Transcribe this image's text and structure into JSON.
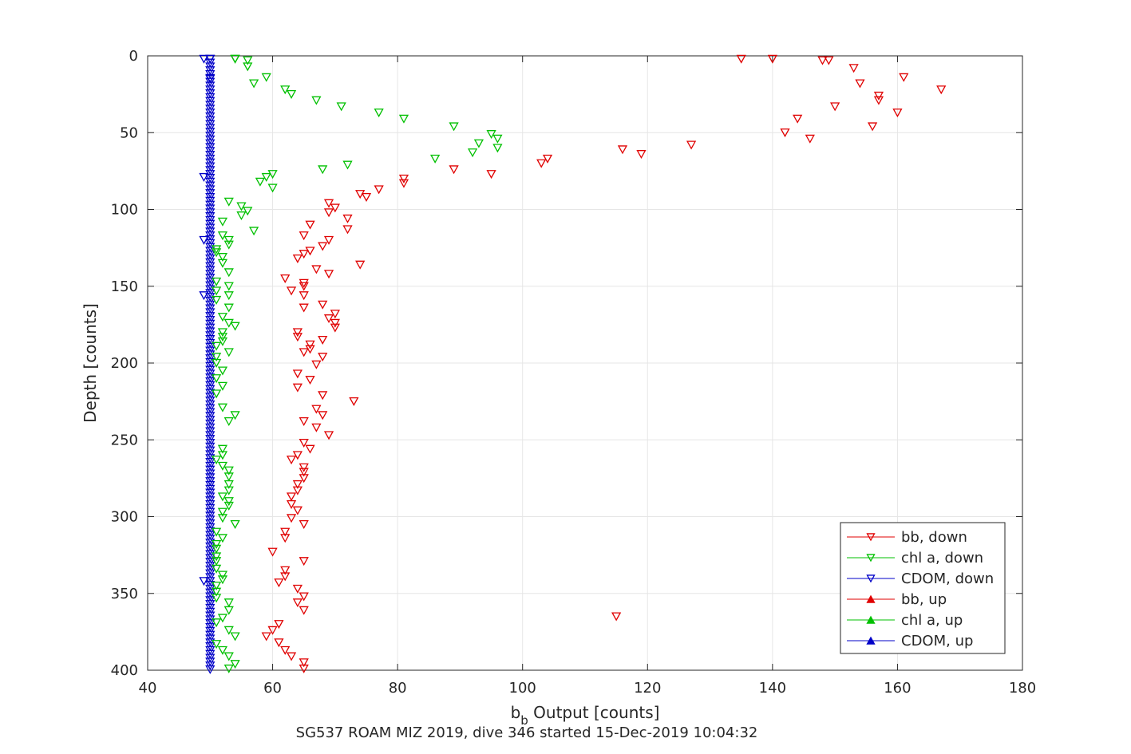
{
  "chart_data": {
    "type": "scatter",
    "xlabel": "b",
    "xlabel_sub": "b",
    "xlabel_rest": " Output [counts]",
    "ylabel": "Depth [counts]",
    "caption": "SG537 ROAM MIZ 2019, dive 346 started 15-Dec-2019 10:04:32",
    "xlim": [
      40,
      180
    ],
    "ylim": [
      0,
      400
    ],
    "y_reversed": true,
    "grid": true,
    "legend_position": "bottom-right",
    "x_ticks": [
      "40",
      "60",
      "80",
      "100",
      "120",
      "140",
      "160",
      "180"
    ],
    "y_ticks": [
      "0",
      "50",
      "100",
      "150",
      "200",
      "250",
      "300",
      "350",
      "400"
    ],
    "series": [
      {
        "name": "bb, down",
        "color": "#e00000",
        "marker": "triangle-down",
        "points": [
          [
            135,
            2
          ],
          [
            140,
            2
          ],
          [
            148,
            3
          ],
          [
            149,
            3
          ],
          [
            153,
            8
          ],
          [
            161,
            14
          ],
          [
            154,
            18
          ],
          [
            167,
            22
          ],
          [
            157,
            26
          ],
          [
            157,
            29
          ],
          [
            150,
            33
          ],
          [
            160,
            37
          ],
          [
            144,
            41
          ],
          [
            156,
            46
          ],
          [
            142,
            50
          ],
          [
            146,
            54
          ],
          [
            127,
            58
          ],
          [
            116,
            61
          ],
          [
            119,
            64
          ],
          [
            104,
            67
          ],
          [
            103,
            70
          ],
          [
            89,
            74
          ],
          [
            95,
            77
          ],
          [
            81,
            80
          ],
          [
            81,
            83
          ],
          [
            77,
            87
          ],
          [
            74,
            90
          ],
          [
            75,
            92
          ],
          [
            69,
            96
          ],
          [
            70,
            99
          ],
          [
            69,
            102
          ],
          [
            72,
            106
          ],
          [
            66,
            110
          ],
          [
            72,
            113
          ],
          [
            65,
            117
          ],
          [
            69,
            120
          ],
          [
            68,
            124
          ],
          [
            66,
            127
          ],
          [
            65,
            129
          ],
          [
            64,
            132
          ],
          [
            74,
            136
          ],
          [
            67,
            139
          ],
          [
            69,
            142
          ],
          [
            62,
            145
          ],
          [
            65,
            148
          ],
          [
            65,
            150
          ],
          [
            63,
            153
          ],
          [
            65,
            156
          ],
          [
            68,
            162
          ],
          [
            65,
            164
          ],
          [
            70,
            168
          ],
          [
            69,
            171
          ],
          [
            70,
            174
          ],
          [
            70,
            177
          ],
          [
            64,
            180
          ],
          [
            64,
            183
          ],
          [
            68,
            185
          ],
          [
            66,
            188
          ],
          [
            66,
            191
          ],
          [
            65,
            193
          ],
          [
            68,
            196
          ],
          [
            67,
            201
          ],
          [
            64,
            207
          ],
          [
            66,
            211
          ],
          [
            64,
            216
          ],
          [
            68,
            221
          ],
          [
            73,
            225
          ],
          [
            67,
            230
          ],
          [
            68,
            234
          ],
          [
            65,
            238
          ],
          [
            67,
            242
          ],
          [
            69,
            247
          ],
          [
            65,
            252
          ],
          [
            66,
            256
          ],
          [
            63,
            263
          ],
          [
            64,
            260
          ],
          [
            65,
            268
          ],
          [
            65,
            271
          ],
          [
            65,
            275
          ],
          [
            64,
            279
          ],
          [
            64,
            283
          ],
          [
            63,
            287
          ],
          [
            63,
            292
          ],
          [
            64,
            296
          ],
          [
            63,
            301
          ],
          [
            65,
            305
          ],
          [
            62,
            310
          ],
          [
            62,
            314
          ],
          [
            60,
            323
          ],
          [
            65,
            329
          ],
          [
            62,
            335
          ],
          [
            62,
            339
          ],
          [
            61,
            343
          ],
          [
            64,
            347
          ],
          [
            65,
            352
          ],
          [
            64,
            356
          ],
          [
            65,
            361
          ],
          [
            115,
            365
          ],
          [
            61,
            370
          ],
          [
            60,
            374
          ],
          [
            59,
            378
          ],
          [
            61,
            382
          ],
          [
            62,
            387
          ],
          [
            63,
            391
          ],
          [
            65,
            395
          ],
          [
            65,
            399
          ]
        ]
      },
      {
        "name": "chl a, down",
        "color": "#00c000",
        "marker": "triangle-down",
        "points": [
          [
            54,
            2
          ],
          [
            54,
            2
          ],
          [
            56,
            3
          ],
          [
            56,
            7
          ],
          [
            59,
            14
          ],
          [
            57,
            18
          ],
          [
            62,
            22
          ],
          [
            63,
            25
          ],
          [
            67,
            29
          ],
          [
            71,
            33
          ],
          [
            77,
            37
          ],
          [
            81,
            41
          ],
          [
            89,
            46
          ],
          [
            95,
            51
          ],
          [
            96,
            54
          ],
          [
            93,
            57
          ],
          [
            96,
            60
          ],
          [
            92,
            63
          ],
          [
            86,
            67
          ],
          [
            72,
            71
          ],
          [
            68,
            74
          ],
          [
            60,
            77
          ],
          [
            59,
            79
          ],
          [
            58,
            82
          ],
          [
            60,
            86
          ],
          [
            53,
            95
          ],
          [
            55,
            98
          ],
          [
            56,
            101
          ],
          [
            55,
            104
          ],
          [
            52,
            108
          ],
          [
            57,
            114
          ],
          [
            52,
            117
          ],
          [
            53,
            120
          ],
          [
            53,
            123
          ],
          [
            51,
            126
          ],
          [
            51,
            128
          ],
          [
            52,
            131
          ],
          [
            52,
            135
          ],
          [
            53,
            141
          ],
          [
            51,
            147
          ],
          [
            53,
            150
          ],
          [
            51,
            153
          ],
          [
            53,
            156
          ],
          [
            51,
            159
          ],
          [
            53,
            164
          ],
          [
            52,
            170
          ],
          [
            53,
            174
          ],
          [
            54,
            176
          ],
          [
            52,
            180
          ],
          [
            52,
            183
          ],
          [
            52,
            186
          ],
          [
            51,
            189
          ],
          [
            53,
            193
          ],
          [
            51,
            196
          ],
          [
            51,
            200
          ],
          [
            52,
            205
          ],
          [
            51,
            210
          ],
          [
            52,
            215
          ],
          [
            51,
            220
          ],
          [
            52,
            229
          ],
          [
            54,
            234
          ],
          [
            53,
            238
          ],
          [
            52,
            256
          ],
          [
            52,
            260
          ],
          [
            51,
            263
          ],
          [
            52,
            267
          ],
          [
            53,
            270
          ],
          [
            53,
            274
          ],
          [
            53,
            279
          ],
          [
            53,
            283
          ],
          [
            52,
            287
          ],
          [
            53,
            290
          ],
          [
            53,
            293
          ],
          [
            52,
            297
          ],
          [
            52,
            301
          ],
          [
            54,
            305
          ],
          [
            51,
            310
          ],
          [
            52,
            314
          ],
          [
            51,
            318
          ],
          [
            51,
            321
          ],
          [
            51,
            326
          ],
          [
            51,
            329
          ],
          [
            51,
            334
          ],
          [
            52,
            338
          ],
          [
            52,
            341
          ],
          [
            51,
            345
          ],
          [
            51,
            349
          ],
          [
            51,
            353
          ],
          [
            53,
            356
          ],
          [
            53,
            361
          ],
          [
            52,
            366
          ],
          [
            51,
            369
          ],
          [
            53,
            374
          ],
          [
            54,
            378
          ],
          [
            51,
            383
          ],
          [
            52,
            387
          ],
          [
            53,
            391
          ],
          [
            54,
            396
          ],
          [
            53,
            399
          ]
        ]
      },
      {
        "name": "CDOM, down",
        "color": "#0000c8",
        "marker": "triangle-down",
        "points": [
          [
            49,
            2
          ],
          [
            50,
            2
          ],
          [
            50,
            15
          ],
          [
            49,
            79
          ],
          [
            49,
            120
          ],
          [
            49,
            156
          ],
          [
            49,
            342
          ]
        ]
      },
      {
        "name": "bb, up",
        "color": "#e00000",
        "marker": "triangle-up",
        "points": []
      },
      {
        "name": "chl a, up",
        "color": "#00c000",
        "marker": "triangle-up",
        "points": []
      },
      {
        "name": "CDOM, up",
        "color": "#0000c8",
        "marker": "triangle-up",
        "points": []
      }
    ],
    "cdom_column": {
      "x": 50,
      "y_from": 2,
      "y_to": 400,
      "y_step": 2.5
    }
  }
}
